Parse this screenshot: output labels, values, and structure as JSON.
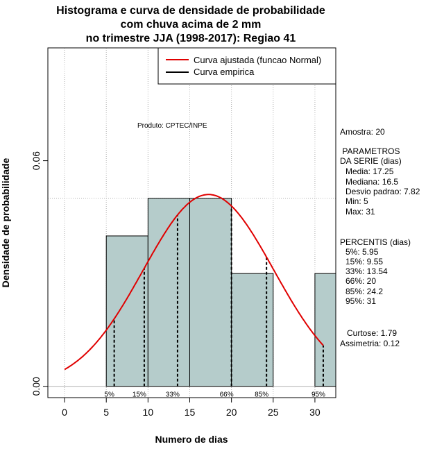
{
  "title_lines": [
    "Histograma e curva de densidade de probabilidade",
    "com chuva acima de 2 mm",
    "no trimestre JJA (1998-2017): Regiao 41"
  ],
  "product_label": "Produto: CPTEC/INPE",
  "legend": {
    "fitted": "Curva ajustada (funcao Normal)",
    "empirical": "Curva empirica"
  },
  "sidebar": {
    "sample": "Amostra: 20",
    "params_title_1": " PARAMETROS",
    "params_title_2": "DA SERIE (dias)",
    "params": [
      "Media: 17.25",
      "Mediana: 16.5",
      "Desvio padrao: 7.82",
      "Min: 5",
      "Max: 31"
    ],
    "percentis_title": "PERCENTIS (dias)",
    "percentis": [
      "5%: 5.95",
      "15%: 9.55",
      "33%: 13.54",
      "66%: 20",
      "85%: 24.2",
      "95%: 31"
    ],
    "curtose": "Curtose: 1.79",
    "assimetria": "Assimetria: 0.12"
  },
  "colors": {
    "bar_fill": "#b5cccb",
    "fitted_curve": "#e00000",
    "grid": "#b0b0b0"
  },
  "chart_data": {
    "type": "bar",
    "xlabel": "Numero de dias",
    "ylabel": "Densidade de probabilidade",
    "xlim": [
      -2,
      32.5
    ],
    "ylim": [
      -0.003,
      0.09
    ],
    "x_ticks": [
      0,
      5,
      10,
      15,
      20,
      25,
      30
    ],
    "y_ticks": [
      0.0,
      0.06
    ],
    "y_tick_labels": [
      "0.00",
      "0.06"
    ],
    "grid_x": [
      0,
      5,
      10,
      15,
      20,
      25,
      30
    ],
    "grid_y": [
      0.05
    ],
    "histogram": [
      {
        "x0": 5,
        "x1": 10,
        "density": 0.04
      },
      {
        "x0": 10,
        "x1": 15,
        "density": 0.05
      },
      {
        "x0": 15,
        "x1": 20,
        "density": 0.05
      },
      {
        "x0": 20,
        "x1": 25,
        "density": 0.03
      },
      {
        "x0": 25,
        "x1": 30,
        "density": 0.0
      },
      {
        "x0": 30,
        "x1": 35,
        "density": 0.03
      }
    ],
    "normal_fit": {
      "mean": 17.25,
      "sd": 7.82,
      "x_from": 0,
      "x_to": 31
    },
    "percentiles": [
      {
        "label": "5%",
        "x": 5.95
      },
      {
        "label": "15%",
        "x": 9.55
      },
      {
        "label": "33%",
        "x": 13.54
      },
      {
        "label": "66%",
        "x": 20
      },
      {
        "label": "85%",
        "x": 24.2
      },
      {
        "label": "95%",
        "x": 31
      }
    ]
  }
}
